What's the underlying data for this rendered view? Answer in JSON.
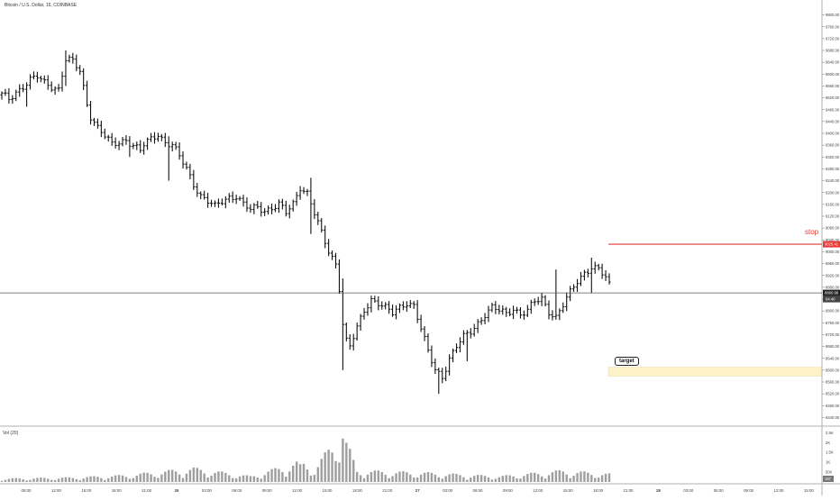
{
  "chart_data": {
    "type": "bar",
    "title": "Bitcoin / U.S. Dollar, 15, COINBASE",
    "y_axis": {
      "ticks": [
        "9800.00",
        "9760.00",
        "9720.00",
        "9680.00",
        "9640.00",
        "9600.00",
        "9560.00",
        "9520.00",
        "9480.00",
        "9440.00",
        "9400.00",
        "9360.00",
        "9320.00",
        "9280.00",
        "9240.00",
        "9200.00",
        "9160.00",
        "9120.00",
        "9080.00",
        "9040.00",
        "9000.00",
        "8960.00",
        "8920.00",
        "8880.00",
        "8840.00",
        "8800.00",
        "8760.00",
        "8720.00",
        "8680.00",
        "8640.00",
        "8600.00",
        "8560.00",
        "8520.00",
        "8480.00",
        "8440.00"
      ],
      "range": [
        8420,
        9820
      ],
      "current_price_label": "8860.99",
      "current_price_value": 8860.99,
      "countdown_label": "04:40",
      "stop_price_label": "9025.41",
      "stop_price_value": 9025.41
    },
    "x_axis": {
      "labels": [
        "09:00",
        "12:00",
        "15:00",
        "18:00",
        "21:00",
        "26",
        "03:00",
        "06:00",
        "09:00",
        "12:00",
        "15:00",
        "18:00",
        "21:00",
        "27",
        "03:00",
        "06:00",
        "09:00",
        "12:00",
        "15:00",
        "18:00",
        "21:00",
        "28",
        "03:00",
        "06:00",
        "09:00",
        "12:00",
        "15:00"
      ]
    },
    "annotations": {
      "stop_text": "stop",
      "stop_color": "#e53935",
      "target_text": "target",
      "target_zone": [
        8580,
        8610
      ],
      "target_color": "#fdf1c7"
    },
    "volume": {
      "label": "Vol (20)",
      "ticks": [
        "2.5K",
        "2K",
        "1.5K",
        "1K",
        "500"
      ],
      "range": [
        0,
        2600
      ],
      "current_label": "167"
    },
    "ohlc_anchors": [
      [
        0,
        9530
      ],
      [
        2,
        9515
      ],
      [
        4,
        9540
      ],
      [
        6,
        9560
      ],
      [
        8,
        9580
      ],
      [
        10,
        9590
      ],
      [
        12,
        9570
      ],
      [
        14,
        9560
      ],
      [
        16,
        9550
      ],
      [
        18,
        9650
      ],
      [
        20,
        9640
      ],
      [
        22,
        9610
      ],
      [
        24,
        9500
      ],
      [
        25,
        9460
      ],
      [
        27,
        9420
      ],
      [
        29,
        9390
      ],
      [
        31,
        9360
      ],
      [
        33,
        9370
      ],
      [
        35,
        9380
      ],
      [
        37,
        9360
      ],
      [
        39,
        9340
      ],
      [
        40,
        9360
      ],
      [
        42,
        9380
      ],
      [
        44,
        9400
      ],
      [
        46,
        9370
      ],
      [
        48,
        9360
      ],
      [
        50,
        9320
      ],
      [
        52,
        9280
      ],
      [
        54,
        9230
      ],
      [
        56,
        9190
      ],
      [
        58,
        9170
      ],
      [
        60,
        9150
      ],
      [
        62,
        9170
      ],
      [
        64,
        9185
      ],
      [
        66,
        9190
      ],
      [
        68,
        9160
      ],
      [
        70,
        9140
      ],
      [
        72,
        9150
      ],
      [
        74,
        9140
      ],
      [
        76,
        9150
      ],
      [
        78,
        9160
      ],
      [
        80,
        9130
      ],
      [
        82,
        9160
      ],
      [
        84,
        9220
      ],
      [
        86,
        9200
      ],
      [
        88,
        9130
      ],
      [
        90,
        9060
      ],
      [
        92,
        9000
      ],
      [
        94,
        8960
      ],
      [
        95,
        8880
      ],
      [
        96,
        8760
      ],
      [
        97,
        8700
      ],
      [
        98,
        8680
      ],
      [
        100,
        8740
      ],
      [
        102,
        8800
      ],
      [
        104,
        8840
      ],
      [
        106,
        8830
      ],
      [
        108,
        8810
      ],
      [
        110,
        8790
      ],
      [
        112,
        8810
      ],
      [
        114,
        8830
      ],
      [
        116,
        8820
      ],
      [
        118,
        8740
      ],
      [
        120,
        8660
      ],
      [
        122,
        8600
      ],
      [
        124,
        8580
      ],
      [
        126,
        8640
      ],
      [
        128,
        8680
      ],
      [
        130,
        8710
      ],
      [
        132,
        8730
      ],
      [
        134,
        8760
      ],
      [
        136,
        8790
      ],
      [
        138,
        8810
      ],
      [
        140,
        8800
      ],
      [
        142,
        8790
      ],
      [
        144,
        8810
      ],
      [
        146,
        8790
      ],
      [
        148,
        8800
      ],
      [
        150,
        8830
      ],
      [
        152,
        8840
      ],
      [
        154,
        8800
      ],
      [
        156,
        8780
      ],
      [
        158,
        8820
      ],
      [
        160,
        8860
      ],
      [
        162,
        8900
      ],
      [
        164,
        8930
      ],
      [
        166,
        8950
      ],
      [
        168,
        8940
      ],
      [
        170,
        8910
      ],
      [
        171,
        8885
      ]
    ],
    "spikes": [
      [
        7,
        9520,
        9490
      ],
      [
        18,
        9680,
        9560
      ],
      [
        36,
        9380,
        9320
      ],
      [
        47,
        9390,
        9240
      ],
      [
        87,
        9250,
        9060
      ],
      [
        96,
        8910,
        8600
      ],
      [
        123,
        8600,
        8520
      ],
      [
        131,
        8700,
        8630
      ],
      [
        156,
        8940,
        8800
      ],
      [
        166,
        8980,
        8860
      ]
    ],
    "volume_anchors": [
      [
        0,
        150
      ],
      [
        20,
        200
      ],
      [
        35,
        300
      ],
      [
        54,
        600
      ],
      [
        70,
        250
      ],
      [
        84,
        900
      ],
      [
        88,
        600
      ],
      [
        96,
        2200
      ],
      [
        100,
        500
      ],
      [
        120,
        400
      ],
      [
        140,
        250
      ],
      [
        158,
        500
      ],
      [
        171,
        350
      ]
    ]
  }
}
